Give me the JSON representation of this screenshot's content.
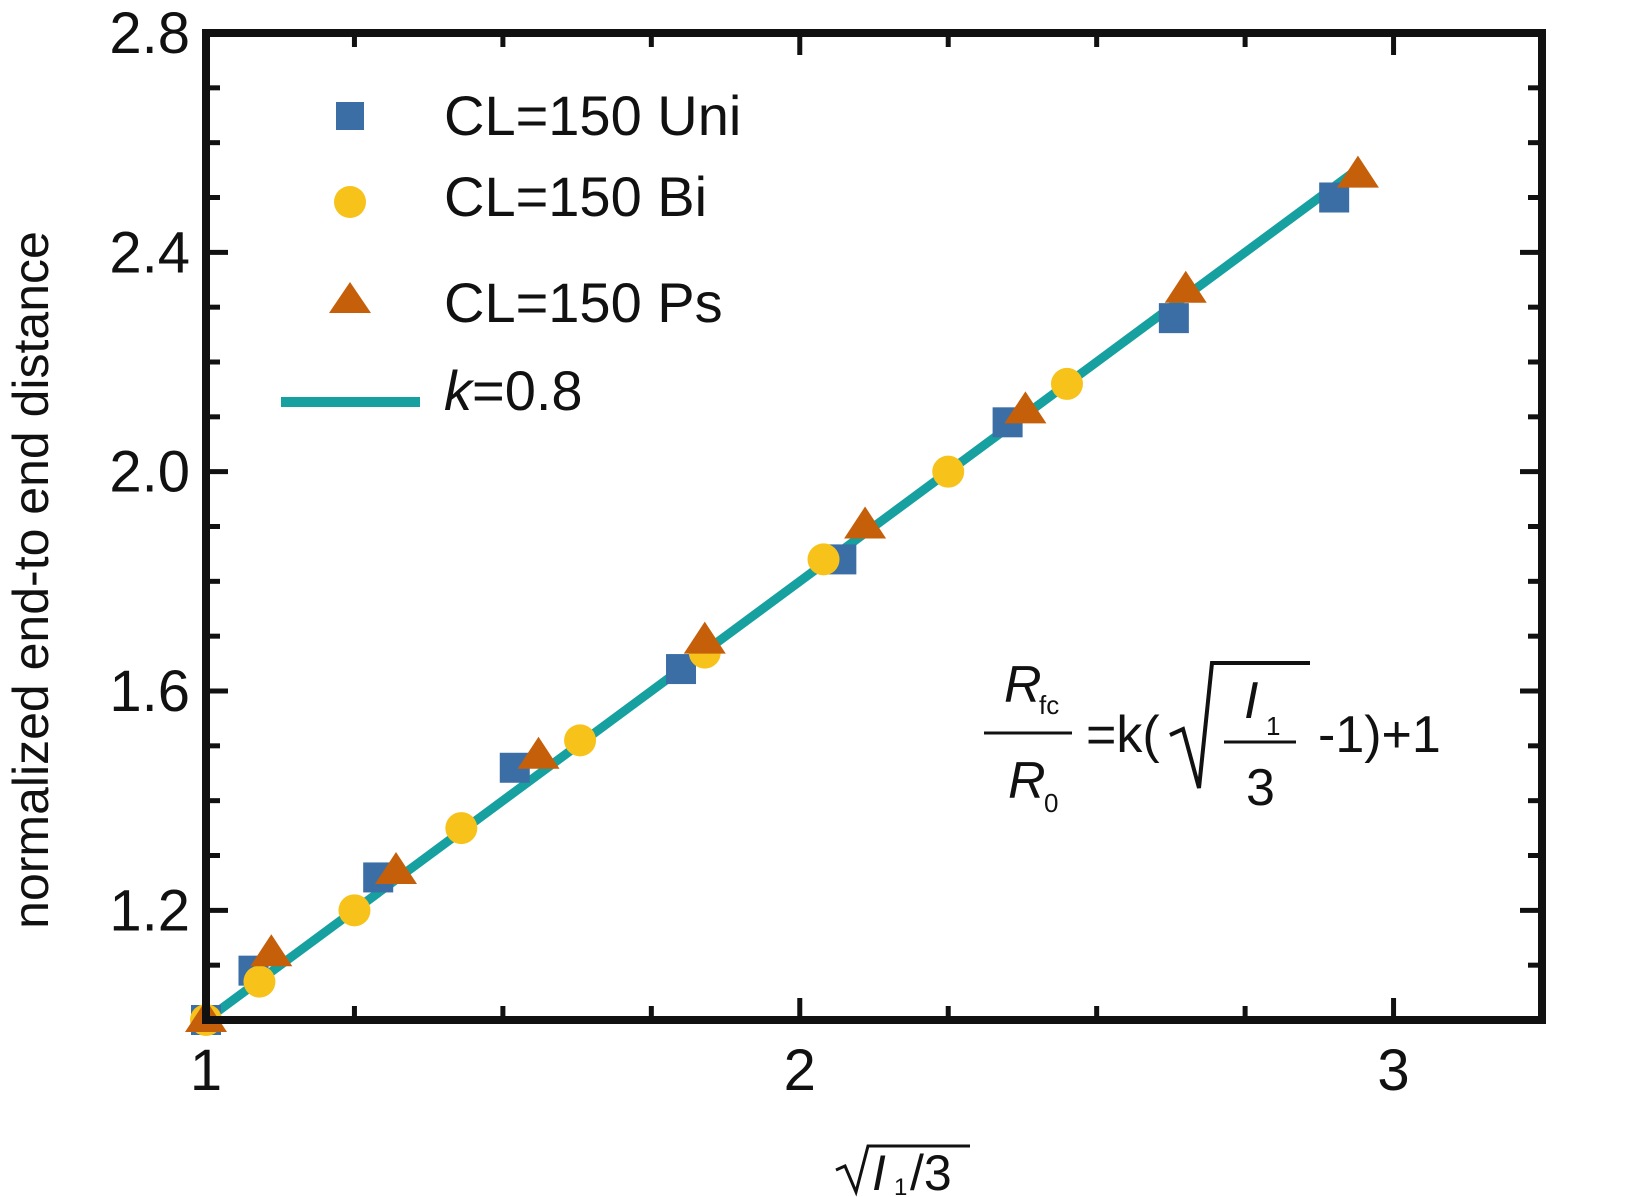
{
  "chart_data": {
    "type": "scatter",
    "xlabel": "√I1/3",
    "ylabel": "normalized end-to end distance",
    "xlim": [
      1,
      3.25
    ],
    "ylim": [
      1.0,
      2.8
    ],
    "x_ticks": [
      "1",
      "2",
      "3"
    ],
    "y_ticks": [
      "1.2",
      "1.6",
      "2.0",
      "2.4",
      "2.8"
    ],
    "legend_position": "top-left",
    "series": [
      {
        "name": "CL=150 Uni",
        "marker": "square",
        "color": "#3a6ea5",
        "points": [
          [
            1.0,
            1.0
          ],
          [
            1.08,
            1.09
          ],
          [
            1.29,
            1.26
          ],
          [
            1.52,
            1.46
          ],
          [
            1.8,
            1.64
          ],
          [
            2.07,
            1.84
          ],
          [
            2.35,
            2.09
          ],
          [
            2.63,
            2.28
          ],
          [
            2.9,
            2.5
          ]
        ]
      },
      {
        "name": "CL=150 Bi",
        "marker": "circle",
        "color": "#f7c21a",
        "points": [
          [
            1.0,
            1.0
          ],
          [
            1.09,
            1.07
          ],
          [
            1.25,
            1.2
          ],
          [
            1.43,
            1.35
          ],
          [
            1.63,
            1.51
          ],
          [
            1.84,
            1.67
          ],
          [
            2.04,
            1.84
          ],
          [
            2.25,
            2.0
          ],
          [
            2.45,
            2.16
          ]
        ]
      },
      {
        "name": "CL=150 Ps",
        "marker": "triangle",
        "color": "#c65f0a",
        "points": [
          [
            1.0,
            1.0
          ],
          [
            1.11,
            1.12
          ],
          [
            1.32,
            1.27
          ],
          [
            1.56,
            1.48
          ],
          [
            1.84,
            1.69
          ],
          [
            2.11,
            1.9
          ],
          [
            2.38,
            2.11
          ],
          [
            2.65,
            2.33
          ],
          [
            2.94,
            2.54
          ]
        ]
      }
    ],
    "fit_line": {
      "name": "k=0.8",
      "color": "#16a0a0",
      "x": [
        1.0,
        2.94
      ],
      "y": [
        1.0,
        2.552
      ]
    },
    "equation": {
      "lhs_numerator": "R",
      "lhs_numerator_sub": "fc",
      "lhs_denominator": "R",
      "lhs_denominator_sub": "0",
      "middle": "=k(",
      "sqrt_numerator": "I",
      "sqrt_numerator_sub": "1",
      "sqrt_denominator": "3",
      "tail": "-1)+1"
    },
    "legend_labels": {
      "uni": "CL=150 Uni",
      "bi": "CL=150 Bi",
      "ps": "CL=150 Ps",
      "k_italic": "k",
      "k_rest": "=0.8"
    },
    "xlabel_parts": {
      "main": "I",
      "sub": "1",
      "tail": "/3"
    }
  }
}
